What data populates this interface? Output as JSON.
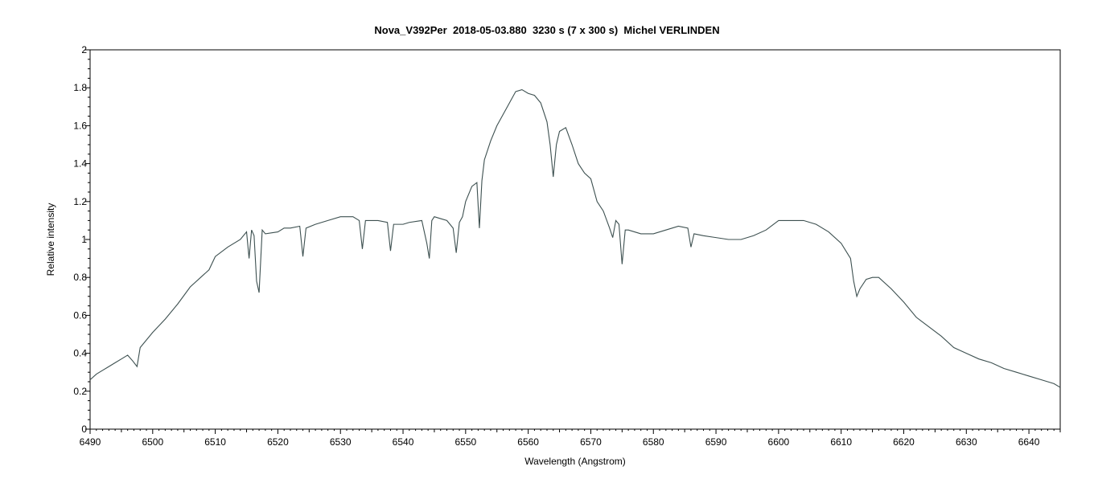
{
  "chart_data": {
    "type": "line",
    "title": "Nova_V392Per  2018-05-03.880  3230 s (7 x 300 s)  Michel VERLINDEN",
    "xlabel": "Wavelength (Angstrom)",
    "ylabel": "Relative intensity",
    "xlim": [
      6490,
      6645
    ],
    "ylim": [
      0,
      2
    ],
    "xticks": [
      "6490",
      "6500",
      "6510",
      "6520",
      "6530",
      "6540",
      "6550",
      "6560",
      "6570",
      "6580",
      "6590",
      "6600",
      "6610",
      "6620",
      "6630",
      "6640"
    ],
    "yticks": [
      "0",
      "0.2",
      "0.4",
      "0.6",
      "0.8",
      "1",
      "1.2",
      "1.4",
      "1.6",
      "1.8",
      "2"
    ],
    "grid": false,
    "line_color": "#3d5050",
    "series": [
      {
        "x": [
          6490.0,
          6491.0,
          6492.0,
          6493.0,
          6494.0,
          6495.0,
          6496.0,
          6496.8,
          6497.5,
          6498.0,
          6500.0,
          6502.0,
          6504.0,
          6506.0,
          6508.0,
          6509.0,
          6510.0,
          6512.0,
          6514.0,
          6515.0,
          6515.4,
          6515.8,
          6516.2,
          6516.6,
          6517.0,
          6517.5,
          6518.0,
          6520.0,
          6521.0,
          6522.0,
          6523.5,
          6524.0,
          6524.5,
          6526.0,
          6528.0,
          6530.0,
          6532.0,
          6533.0,
          6533.5,
          6534.0,
          6536.0,
          6537.5,
          6538.0,
          6538.5,
          6540.0,
          6541.0,
          6543.0,
          6543.8,
          6544.2,
          6544.6,
          6545.0,
          6546.0,
          6547.0,
          6548.0,
          6548.5,
          6549.0,
          6549.5,
          6550.0,
          6551.0,
          6551.8,
          6552.2,
          6552.6,
          6553.0,
          6554.0,
          6555.0,
          6556.0,
          6557.0,
          6558.0,
          6559.0,
          6560.0,
          6561.0,
          6562.0,
          6563.0,
          6563.5,
          6564.0,
          6564.5,
          6565.0,
          6566.0,
          6567.0,
          6568.0,
          6569.0,
          6570.0,
          6571.0,
          6572.0,
          6573.0,
          6573.5,
          6574.0,
          6574.5,
          6575.0,
          6575.5,
          6576.0,
          6577.0,
          6578.0,
          6580.0,
          6582.0,
          6584.0,
          6585.5,
          6586.0,
          6586.5,
          6588.0,
          6590.0,
          6592.0,
          6594.0,
          6596.0,
          6598.0,
          6600.0,
          6602.0,
          6604.0,
          6606.0,
          6608.0,
          6610.0,
          6611.5,
          6612.0,
          6612.5,
          6613.0,
          6614.0,
          6615.0,
          6616.0,
          6618.0,
          6620.0,
          6622.0,
          6624.0,
          6626.0,
          6628.0,
          6630.0,
          6632.0,
          6634.0,
          6636.0,
          6638.0,
          6640.0,
          6642.0,
          6644.0,
          6645.0
        ],
        "values": [
          0.26,
          0.29,
          0.31,
          0.33,
          0.35,
          0.37,
          0.39,
          0.36,
          0.33,
          0.43,
          0.51,
          0.58,
          0.66,
          0.75,
          0.81,
          0.84,
          0.91,
          0.96,
          1.0,
          1.04,
          0.9,
          1.05,
          1.02,
          0.78,
          0.72,
          1.05,
          1.03,
          1.04,
          1.06,
          1.06,
          1.07,
          0.91,
          1.06,
          1.08,
          1.1,
          1.12,
          1.12,
          1.1,
          0.95,
          1.1,
          1.1,
          1.09,
          0.94,
          1.08,
          1.08,
          1.09,
          1.1,
          0.98,
          0.9,
          1.1,
          1.12,
          1.11,
          1.1,
          1.06,
          0.93,
          1.09,
          1.12,
          1.2,
          1.28,
          1.3,
          1.06,
          1.31,
          1.42,
          1.52,
          1.6,
          1.66,
          1.72,
          1.78,
          1.79,
          1.77,
          1.76,
          1.72,
          1.62,
          1.5,
          1.33,
          1.5,
          1.57,
          1.59,
          1.5,
          1.4,
          1.35,
          1.32,
          1.2,
          1.15,
          1.06,
          1.01,
          1.1,
          1.08,
          0.87,
          1.05,
          1.05,
          1.04,
          1.03,
          1.03,
          1.05,
          1.07,
          1.06,
          0.96,
          1.03,
          1.02,
          1.01,
          1.0,
          1.0,
          1.02,
          1.05,
          1.1,
          1.1,
          1.1,
          1.08,
          1.04,
          0.98,
          0.9,
          0.78,
          0.7,
          0.74,
          0.79,
          0.8,
          0.8,
          0.74,
          0.67,
          0.59,
          0.54,
          0.49,
          0.43,
          0.4,
          0.37,
          0.35,
          0.32,
          0.3,
          0.28,
          0.26,
          0.24,
          0.22
        ]
      }
    ]
  }
}
